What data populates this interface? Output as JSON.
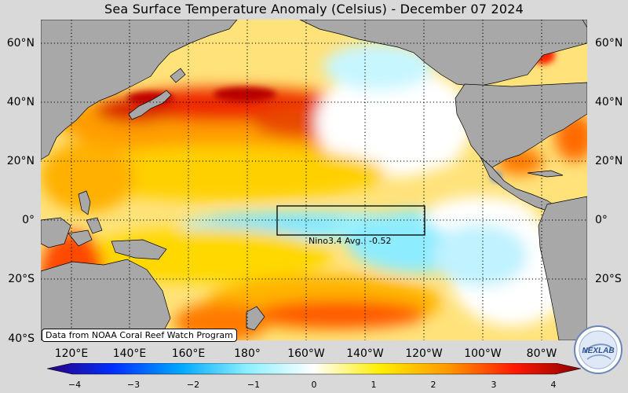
{
  "title": "Sea Surface Temperature Anomaly (Celsius) - December 07 2024",
  "lat_labels_left": [
    "60°N",
    "40°N",
    "20°N",
    "0°",
    "20°S",
    "40°S"
  ],
  "lat_labels_right": [
    "60°N",
    "40°N",
    "20°N",
    "0°",
    "20°S"
  ],
  "lon_labels": [
    "120°E",
    "140°E",
    "160°E",
    "180°",
    "160°W",
    "140°W",
    "120°W",
    "100°W",
    "80°W"
  ],
  "colorbar": {
    "ticks": [
      "−4",
      "−3",
      "−2",
      "−1",
      "0",
      "1",
      "2",
      "3",
      "4"
    ],
    "colors": [
      "#2a0080",
      "#0030ff",
      "#00a8ff",
      "#8cf0ff",
      "#ffffff",
      "#ffee00",
      "#ff9900",
      "#ff1a00",
      "#8a0000"
    ]
  },
  "source_note": "Data from NOAA Coral Reef Watch Program",
  "nino_region": {
    "label": "Nino3.4 Avg.: -0.52"
  },
  "logo": {
    "text": "NEXLAB"
  },
  "colors": {
    "land": "#a8a8a8",
    "background": "#d9d9d9",
    "grid": "#000000"
  }
}
